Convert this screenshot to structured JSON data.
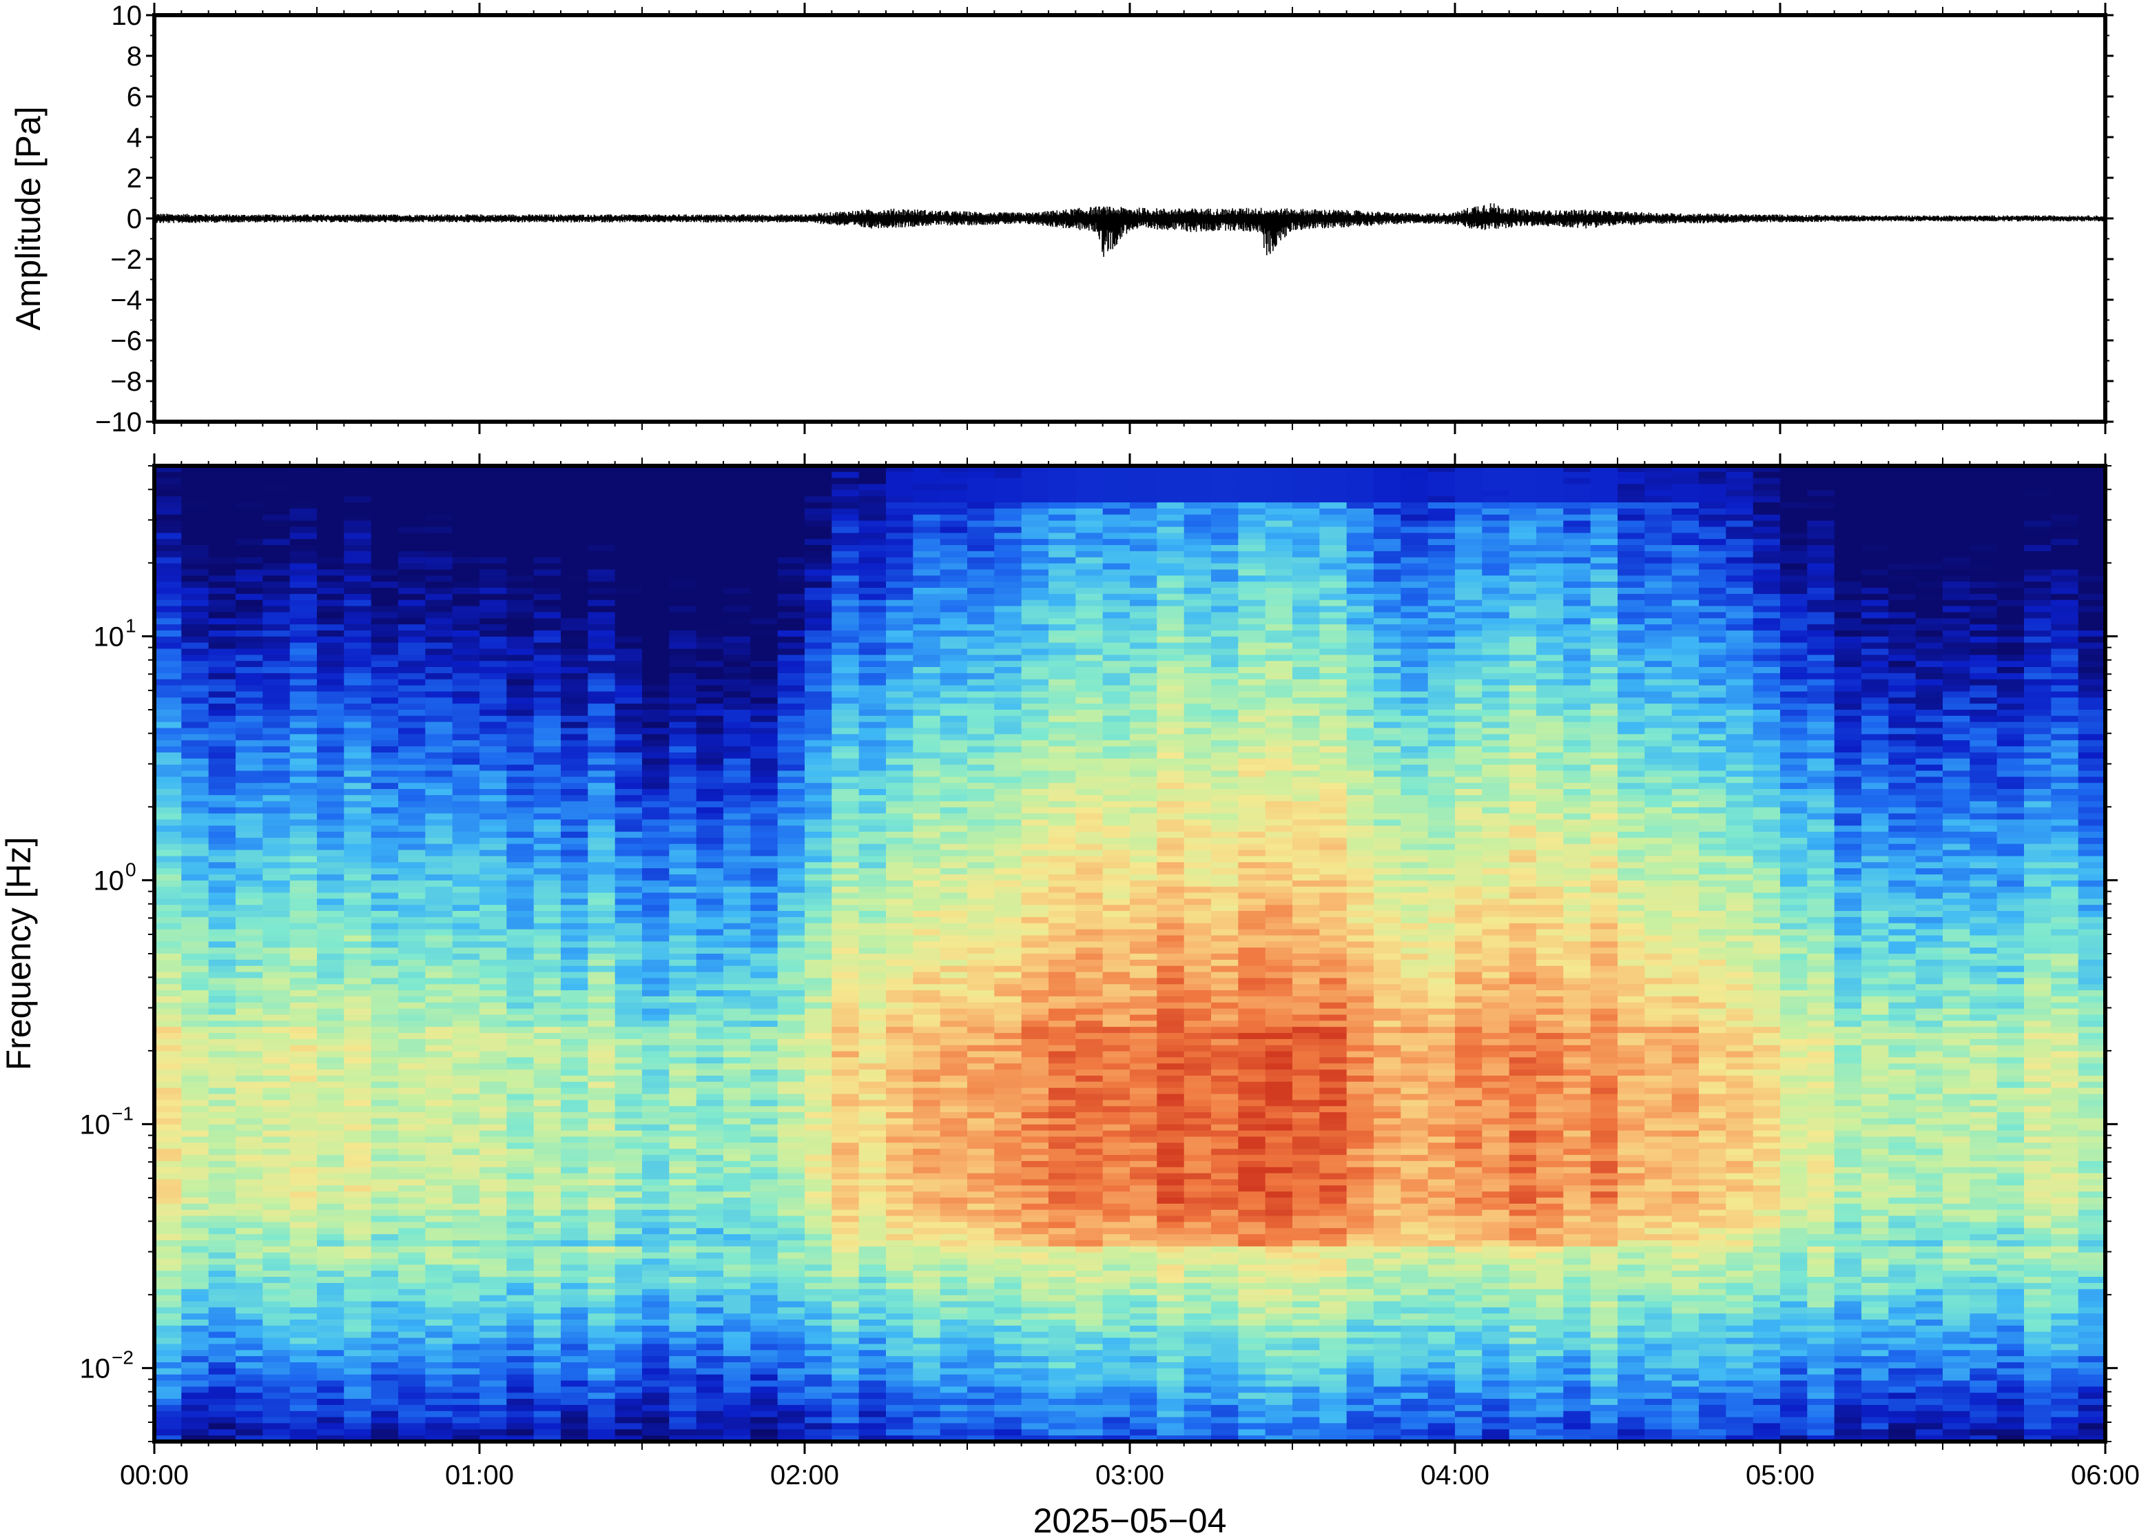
{
  "chart_data": [
    {
      "type": "line",
      "panel": "waveform",
      "title": "",
      "ylabel": "Amplitude [Pa]",
      "ylim": [
        -10,
        10
      ],
      "yticks": [
        {
          "value": 10,
          "label": "10"
        },
        {
          "value": 8,
          "label": "8"
        },
        {
          "value": 6,
          "label": "6"
        },
        {
          "value": 4,
          "label": "4"
        },
        {
          "value": 2,
          "label": "2"
        },
        {
          "value": 0,
          "label": "0"
        },
        {
          "value": -2,
          "label": "−2"
        },
        {
          "value": -4,
          "label": "−4"
        },
        {
          "value": -6,
          "label": "−6"
        },
        {
          "value": -8,
          "label": "−8"
        },
        {
          "value": -10,
          "label": "−10"
        }
      ],
      "x_hours": [
        0.0,
        0.25,
        0.5,
        0.75,
        1.0,
        1.25,
        1.5,
        1.75,
        2.0,
        2.1,
        2.2,
        2.3,
        2.4,
        2.5,
        2.6,
        2.7,
        2.8,
        2.9,
        2.92,
        3.0,
        3.1,
        3.2,
        3.3,
        3.4,
        3.42,
        3.5,
        3.6,
        3.7,
        3.8,
        3.9,
        4.0,
        4.05,
        4.1,
        4.15,
        4.2,
        4.3,
        4.4,
        4.5,
        4.6,
        4.7,
        4.8,
        4.9,
        5.0,
        5.25,
        5.5,
        5.75,
        6.0
      ],
      "envelope_upper": [
        0.25,
        0.2,
        0.2,
        0.2,
        0.2,
        0.2,
        0.2,
        0.2,
        0.2,
        0.35,
        0.45,
        0.5,
        0.4,
        0.35,
        0.3,
        0.3,
        0.45,
        0.6,
        0.6,
        0.55,
        0.5,
        0.5,
        0.5,
        0.55,
        0.5,
        0.5,
        0.45,
        0.4,
        0.3,
        0.25,
        0.3,
        0.6,
        0.85,
        0.6,
        0.45,
        0.4,
        0.45,
        0.35,
        0.3,
        0.25,
        0.25,
        0.2,
        0.2,
        0.15,
        0.15,
        0.15,
        0.15
      ],
      "envelope_lower": [
        -0.25,
        -0.2,
        -0.2,
        -0.2,
        -0.2,
        -0.2,
        -0.2,
        -0.2,
        -0.2,
        -0.35,
        -0.5,
        -0.45,
        -0.35,
        -0.35,
        -0.3,
        -0.3,
        -0.5,
        -0.7,
        -2.0,
        -0.6,
        -0.55,
        -0.7,
        -0.6,
        -0.7,
        -2.0,
        -0.6,
        -0.5,
        -0.4,
        -0.3,
        -0.25,
        -0.3,
        -0.55,
        -0.6,
        -0.5,
        -0.4,
        -0.4,
        -0.5,
        -0.35,
        -0.3,
        -0.25,
        -0.25,
        -0.2,
        -0.2,
        -0.15,
        -0.15,
        -0.15,
        -0.15
      ]
    },
    {
      "type": "heatmap",
      "panel": "spectrogram",
      "title": "",
      "ylabel": "Frequency [Hz]",
      "xlabel": "2025−05−04",
      "y_scale": "log",
      "ylim": [
        0.005,
        50
      ],
      "yticks": [
        {
          "value": 10,
          "base": "10",
          "exp": "1"
        },
        {
          "value": 1,
          "base": "10",
          "exp": "0"
        },
        {
          "value": 0.1,
          "base": "10",
          "exp": "−1"
        },
        {
          "value": 0.01,
          "base": "10",
          "exp": "−2"
        }
      ],
      "xlim_hours": [
        0,
        6
      ],
      "xticks": [
        {
          "value": 0,
          "label": "00:00"
        },
        {
          "value": 1,
          "label": "01:00"
        },
        {
          "value": 2,
          "label": "02:00"
        },
        {
          "value": 3,
          "label": "03:00"
        },
        {
          "value": 4,
          "label": "04:00"
        },
        {
          "value": 5,
          "label": "05:00"
        },
        {
          "value": 6,
          "label": "06:00"
        }
      ],
      "colormap": [
        "#0a0a6e",
        "#0b1fc8",
        "#1e6cf0",
        "#3fb8f5",
        "#7de8d0",
        "#c8f0a0",
        "#f5e890",
        "#f8b870",
        "#f07840",
        "#d23a20"
      ],
      "time_activity_hours": [
        0.0,
        0.5,
        1.0,
        1.5,
        1.8,
        2.0,
        2.15,
        2.5,
        2.9,
        3.3,
        3.7,
        3.85,
        4.1,
        4.4,
        4.7,
        5.0,
        5.15,
        5.5,
        6.0
      ],
      "time_activity_level": [
        0.55,
        0.5,
        0.45,
        0.38,
        0.35,
        0.5,
        0.7,
        0.78,
        0.92,
        0.95,
        0.88,
        0.72,
        0.9,
        0.85,
        0.72,
        0.62,
        0.45,
        0.42,
        0.45
      ]
    }
  ]
}
